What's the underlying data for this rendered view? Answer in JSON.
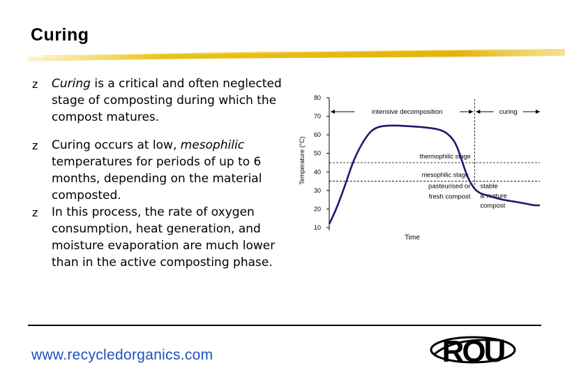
{
  "slide": {
    "title": "Curing",
    "bullets": [
      {
        "parts": [
          {
            "text": "Curing",
            "italic": true
          },
          {
            "text": " is a critical and often neglected stage of composting during which the compost matures.",
            "italic": false
          }
        ]
      },
      {
        "parts": [
          {
            "text": "Curing occurs at low, ",
            "italic": false
          },
          {
            "text": "mesophilic",
            "italic": true
          },
          {
            "text": " temperatures for periods of up to 6 months, depending on the material composted.",
            "italic": false
          }
        ]
      },
      {
        "parts": [
          {
            "text": "In this process, the rate of oxygen consumption, heat generation, and moisture evaporation are much lower than in the active composting phase.",
            "italic": false
          }
        ]
      }
    ],
    "bullet_symbol": "z",
    "footer_url": "www.recycledorganics.com",
    "logo_text": "ROU"
  },
  "chart_data": {
    "type": "line",
    "ylabel": "Temperature (°C)",
    "xlabel": "Time",
    "ylim": [
      10,
      80
    ],
    "yticks": [
      80,
      70,
      60,
      50,
      40,
      30,
      20,
      10
    ],
    "thresholds": [
      {
        "label": "thermophilic stage",
        "y": 45
      },
      {
        "label": "mesophilic stage",
        "y": 35
      }
    ],
    "phases": [
      {
        "label": "intensive decomposition",
        "x_range": [
          0,
          0.69
        ]
      },
      {
        "label": "curing",
        "x_range": [
          0.69,
          1.0
        ]
      }
    ],
    "phase_divider_x": 0.69,
    "annotations": [
      {
        "label": "pasteurised or",
        "label2": "fresh compost"
      },
      {
        "label": "stable",
        "label2": "& mature",
        "label3": "compost"
      }
    ],
    "series": [
      {
        "x": [
          0.0,
          0.03,
          0.07,
          0.12,
          0.18,
          0.22,
          0.27,
          0.33,
          0.4,
          0.46,
          0.52,
          0.56,
          0.6,
          0.63,
          0.66,
          0.7,
          0.76,
          0.82,
          0.88,
          0.93,
          0.97,
          1.0
        ],
        "y": [
          12,
          19,
          31,
          48,
          60,
          64,
          65,
          65,
          64.5,
          64,
          63,
          61,
          56,
          46,
          36,
          29,
          27,
          25,
          24,
          23,
          22,
          22
        ]
      }
    ]
  }
}
